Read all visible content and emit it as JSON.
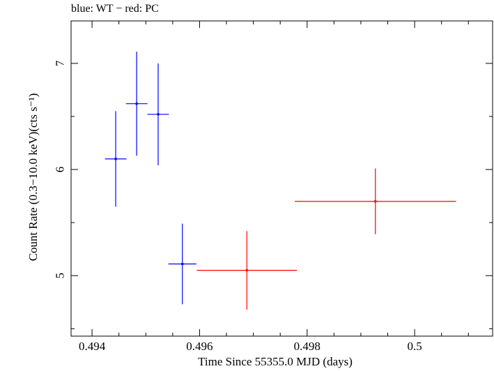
{
  "chart_data": {
    "type": "scatter",
    "title": "blue: WT − red: PC",
    "xlabel": "Time Since 55355.0 MJD (days)",
    "ylabel": "Count Rate (0.3−10.0 keV)(cts s⁻¹)",
    "xlim": [
      0.49361,
      0.50145
    ],
    "ylim": [
      4.43,
      7.4
    ],
    "grid": false,
    "x_ticks": [
      0.494,
      0.496,
      0.498,
      0.5
    ],
    "x_tick_labels": [
      "0.494",
      "0.496",
      "0.498",
      "0.5"
    ],
    "y_ticks": [
      5,
      6,
      7
    ],
    "y_tick_labels": [
      "5",
      "6",
      "7"
    ],
    "series": [
      {
        "name": "WT",
        "color": "#0000ff",
        "points": [
          {
            "x": 0.49444,
            "y": 6.1,
            "xerr": 0.0002,
            "yerr_low": 0.45,
            "yerr_high": 0.45
          },
          {
            "x": 0.49483,
            "y": 6.62,
            "xerr": 0.0002,
            "yerr_low": 0.49,
            "yerr_high": 0.49
          },
          {
            "x": 0.49523,
            "y": 6.52,
            "xerr": 0.0002,
            "yerr_low": 0.48,
            "yerr_high": 0.48
          },
          {
            "x": 0.49568,
            "y": 5.11,
            "xerr": 0.00026,
            "yerr_low": 0.38,
            "yerr_high": 0.38
          }
        ]
      },
      {
        "name": "PC",
        "color": "#ff0000",
        "points": [
          {
            "x": 0.49688,
            "y": 5.05,
            "xerr": 0.00093,
            "yerr_low": 0.37,
            "yerr_high": 0.37
          },
          {
            "x": 0.49927,
            "y": 5.7,
            "xerr": 0.0015,
            "yerr_low": 0.31,
            "yerr_high": 0.31
          }
        ]
      }
    ]
  }
}
